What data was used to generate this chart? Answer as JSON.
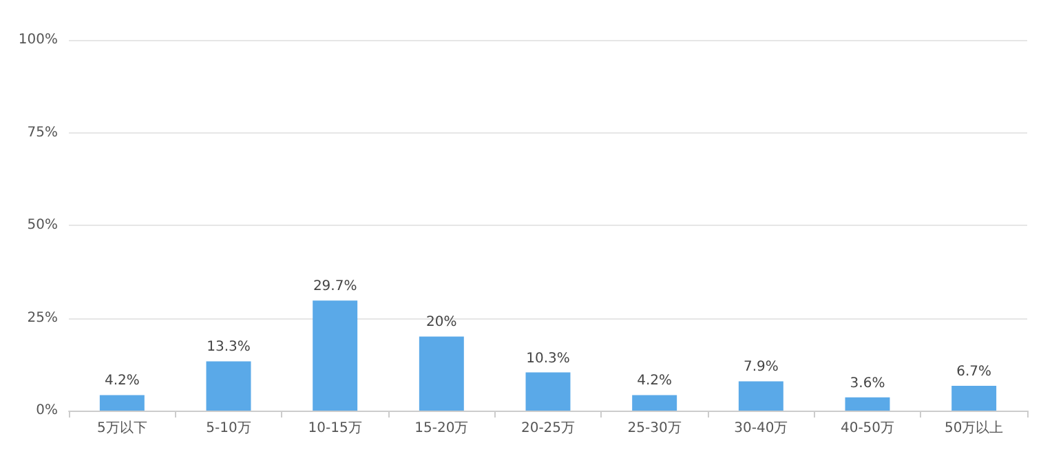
{
  "chart_data": {
    "type": "bar",
    "categories": [
      "5万以下",
      "5-10万",
      "10-15万",
      "15-20万",
      "20-25万",
      "25-30万",
      "30-40万",
      "40-50万",
      "50万以上"
    ],
    "values": [
      4.2,
      13.3,
      29.7,
      20,
      10.3,
      4.2,
      7.9,
      3.6,
      6.7
    ],
    "value_labels": [
      "4.2%",
      "13.3%",
      "29.7%",
      "20%",
      "10.3%",
      "4.2%",
      "7.9%",
      "3.6%",
      "6.7%"
    ],
    "color": "#5aa9e8",
    "ylim": [
      0,
      100
    ],
    "yticks": [
      {
        "value": 0,
        "label": "0%"
      },
      {
        "value": 25,
        "label": "25%"
      },
      {
        "value": 50,
        "label": "50%"
      },
      {
        "value": 75,
        "label": "75%"
      },
      {
        "value": 100,
        "label": "100%"
      }
    ],
    "grid": "y"
  }
}
